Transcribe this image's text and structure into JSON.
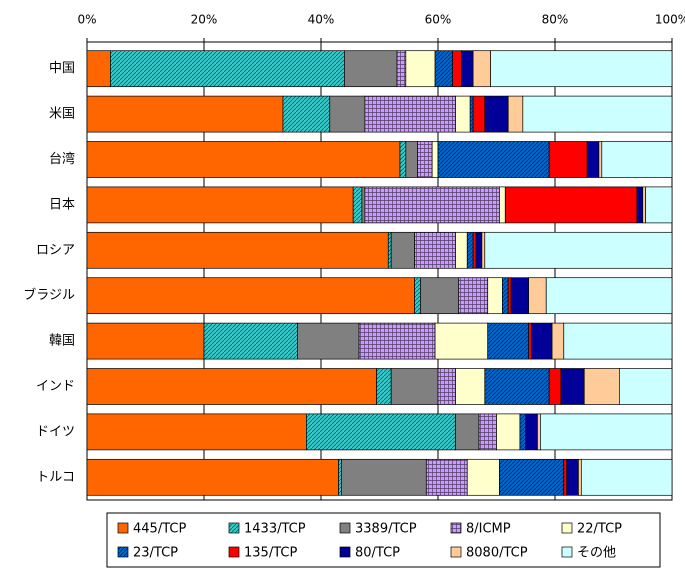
{
  "chart_data": {
    "type": "stacked_bar_100",
    "orientation": "horizontal",
    "categories": [
      "中国",
      "米国",
      "台湾",
      "日本",
      "ロシア",
      "ブラジル",
      "韓国",
      "インド",
      "ドイツ",
      "トルコ"
    ],
    "xlim": [
      0,
      100
    ],
    "xticks": [
      {
        "value": 0,
        "label": "0%"
      },
      {
        "value": 20,
        "label": "20%"
      },
      {
        "value": 40,
        "label": "40%"
      },
      {
        "value": 60,
        "label": "60%"
      },
      {
        "value": 80,
        "label": "80%"
      },
      {
        "value": 100,
        "label": "100%"
      }
    ],
    "grid": true,
    "legend": "bottom",
    "series": [
      {
        "name": "445/TCP",
        "color": "#ff6600",
        "pattern": "solid",
        "values": [
          4,
          33.5,
          53.5,
          45.5,
          51.5,
          56,
          20,
          49.5,
          37.5,
          43
        ]
      },
      {
        "name": "1433/TCP",
        "color": "#33cccc",
        "pattern": "diagonal",
        "values": [
          40,
          8,
          1,
          1.5,
          0.5,
          1,
          16,
          2.5,
          25.5,
          0.5
        ]
      },
      {
        "name": "3389/TCP",
        "color": "#808080",
        "pattern": "solid",
        "values": [
          9,
          6,
          2,
          0.5,
          4,
          6.5,
          10.5,
          8,
          4,
          14.5
        ]
      },
      {
        "name": "8/ICMP",
        "color": "#cc99ff",
        "pattern": "grid",
        "values": [
          1.5,
          15.5,
          2.5,
          23,
          7,
          5,
          13,
          3,
          3,
          7
        ]
      },
      {
        "name": "22/TCP",
        "color": "#ffffcc",
        "pattern": "solid",
        "values": [
          5,
          2.5,
          1,
          1,
          2,
          2.5,
          9,
          5,
          4,
          5.5
        ]
      },
      {
        "name": "23/TCP",
        "color": "#0066cc",
        "pattern": "diagonal",
        "values": [
          3,
          0.5,
          19,
          0,
          1,
          1,
          7,
          11,
          1,
          11
        ]
      },
      {
        "name": "135/TCP",
        "color": "#ff0000",
        "pattern": "solid",
        "values": [
          1.5,
          2,
          6.5,
          22.5,
          0.5,
          0.5,
          0.5,
          2,
          0,
          0.5
        ]
      },
      {
        "name": "80/TCP",
        "color": "#000099",
        "pattern": "solid",
        "values": [
          2,
          4,
          2,
          1,
          1,
          3,
          3.5,
          4,
          2,
          2
        ]
      },
      {
        "name": "8080/TCP",
        "color": "#ffcc99",
        "pattern": "solid",
        "values": [
          3,
          2.5,
          0.5,
          0.5,
          0.5,
          3,
          2,
          6,
          0.5,
          0.5
        ]
      },
      {
        "name": "その他",
        "color": "#ccffff",
        "pattern": "solid",
        "values": [
          31,
          25.5,
          12,
          4.5,
          32,
          21.5,
          18.5,
          9,
          22.5,
          15.5
        ]
      }
    ]
  }
}
